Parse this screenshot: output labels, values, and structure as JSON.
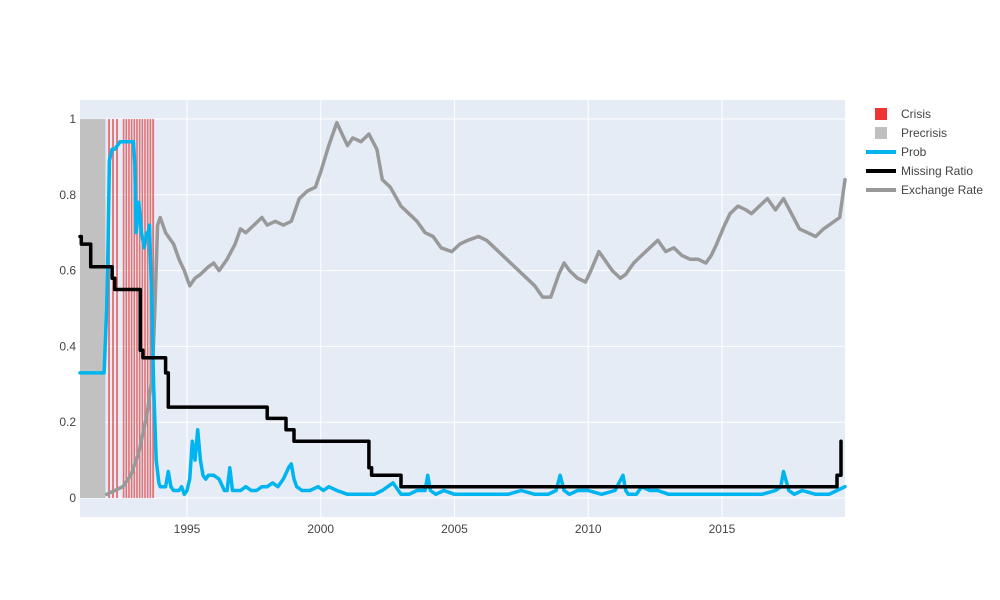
{
  "chart_data": {
    "type": "line",
    "title": "",
    "xlabel": "",
    "ylabel": "",
    "xlim": [
      1991.0,
      2019.6
    ],
    "ylim": [
      -0.05,
      1.05
    ],
    "x_ticks": [
      1995,
      2000,
      2005,
      2010,
      2015
    ],
    "y_ticks": [
      0,
      0.2,
      0.4,
      0.6,
      0.8,
      1
    ],
    "x_tick_labels": [
      "1995",
      "2000",
      "2005",
      "2010",
      "2015"
    ],
    "y_tick_labels": [
      "0",
      "0.2",
      "0.4",
      "0.6",
      "0.8",
      "1"
    ],
    "grid": true,
    "legend_position": "top-right",
    "legend": [
      {
        "name": "Crisis",
        "kind": "box",
        "color": "#f03434"
      },
      {
        "name": "Precrisis",
        "kind": "box",
        "color": "#bfbfbf"
      },
      {
        "name": "Prob",
        "kind": "line",
        "color": "#00b4f0"
      },
      {
        "name": "Missing Ratio",
        "kind": "line",
        "color": "#000000"
      },
      {
        "name": "Exchange Rate",
        "kind": "line",
        "color": "#999999"
      }
    ],
    "precrisis_periods": [
      [
        1991.0,
        1991.95
      ]
    ],
    "crisis_periods": [
      [
        1992.05,
        1992.12
      ],
      [
        1992.2,
        1992.27
      ],
      [
        1992.35,
        1992.42
      ],
      [
        1992.6,
        1992.66
      ],
      [
        1992.7,
        1992.76
      ],
      [
        1992.8,
        1992.86
      ],
      [
        1992.9,
        1992.96
      ],
      [
        1993.0,
        1993.06
      ],
      [
        1993.1,
        1993.16
      ],
      [
        1993.2,
        1993.26
      ],
      [
        1993.3,
        1993.36
      ],
      [
        1993.4,
        1993.46
      ],
      [
        1993.5,
        1993.56
      ],
      [
        1993.6,
        1993.66
      ],
      [
        1993.7,
        1993.77
      ]
    ],
    "series": [
      {
        "name": "Prob",
        "color": "#00b4f0",
        "x": [
          1991.0,
          1991.6,
          1991.9,
          1992.0,
          1992.05,
          1992.1,
          1992.2,
          1992.3,
          1992.4,
          1992.5,
          1992.55,
          1992.7,
          1992.8,
          1992.9,
          1993.0,
          1993.05,
          1993.1,
          1993.2,
          1993.3,
          1993.35,
          1993.4,
          1993.5,
          1993.55,
          1993.6,
          1993.7,
          1993.75,
          1993.85,
          1993.95,
          1994.0,
          1994.1,
          1994.2,
          1994.3,
          1994.4,
          1994.5,
          1994.6,
          1994.7,
          1994.8,
          1994.9,
          1995.0,
          1995.1,
          1995.2,
          1995.3,
          1995.4,
          1995.5,
          1995.6,
          1995.7,
          1995.8,
          1996.0,
          1996.2,
          1996.4,
          1996.5,
          1996.6,
          1996.7,
          1996.8,
          1997.0,
          1997.2,
          1997.4,
          1997.6,
          1997.8,
          1998.0,
          1998.2,
          1998.4,
          1998.6,
          1998.8,
          1998.9,
          1999.0,
          1999.1,
          1999.3,
          1999.6,
          1999.9,
          2000.1,
          2000.3,
          2000.6,
          2001.0,
          2001.5,
          2002.0,
          2002.3,
          2002.5,
          2002.7,
          2003.0,
          2003.3,
          2003.6,
          2003.9,
          2004.0,
          2004.1,
          2004.3,
          2004.6,
          2005.0,
          2005.5,
          2006.0,
          2006.5,
          2007.0,
          2007.5,
          2008.0,
          2008.5,
          2008.8,
          2008.95,
          2009.1,
          2009.3,
          2009.6,
          2010.0,
          2010.5,
          2011.0,
          2011.3,
          2011.4,
          2011.5,
          2011.8,
          2012.0,
          2012.3,
          2012.6,
          2013.0,
          2013.5,
          2014.0,
          2014.5,
          2015.0,
          2015.5,
          2016.0,
          2016.5,
          2017.0,
          2017.2,
          2017.3,
          2017.5,
          2017.7,
          2018.0,
          2018.5,
          2019.0,
          2019.3,
          2019.6
        ],
        "y": [
          0.33,
          0.33,
          0.33,
          0.5,
          0.68,
          0.89,
          0.92,
          0.92,
          0.93,
          0.94,
          0.94,
          0.94,
          0.94,
          0.94,
          0.94,
          0.88,
          0.7,
          0.78,
          0.7,
          0.68,
          0.66,
          0.7,
          0.7,
          0.72,
          0.48,
          0.3,
          0.1,
          0.04,
          0.03,
          0.03,
          0.03,
          0.07,
          0.03,
          0.02,
          0.02,
          0.02,
          0.03,
          0.01,
          0.02,
          0.05,
          0.15,
          0.1,
          0.18,
          0.1,
          0.06,
          0.05,
          0.06,
          0.06,
          0.05,
          0.02,
          0.02,
          0.08,
          0.02,
          0.02,
          0.02,
          0.03,
          0.02,
          0.02,
          0.03,
          0.03,
          0.04,
          0.03,
          0.05,
          0.08,
          0.09,
          0.05,
          0.03,
          0.02,
          0.02,
          0.03,
          0.02,
          0.03,
          0.02,
          0.01,
          0.01,
          0.01,
          0.02,
          0.03,
          0.04,
          0.01,
          0.01,
          0.02,
          0.02,
          0.06,
          0.02,
          0.01,
          0.02,
          0.01,
          0.01,
          0.01,
          0.01,
          0.01,
          0.02,
          0.01,
          0.01,
          0.02,
          0.06,
          0.02,
          0.01,
          0.02,
          0.02,
          0.01,
          0.02,
          0.06,
          0.02,
          0.01,
          0.01,
          0.03,
          0.02,
          0.02,
          0.01,
          0.01,
          0.01,
          0.01,
          0.01,
          0.01,
          0.01,
          0.01,
          0.02,
          0.03,
          0.07,
          0.02,
          0.01,
          0.02,
          0.01,
          0.01,
          0.02,
          0.03
        ]
      },
      {
        "name": "Missing Ratio",
        "color": "#000000",
        "x": [
          1991.0,
          1991.05,
          1991.05,
          1991.4,
          1991.4,
          1992.2,
          1992.2,
          1992.3,
          1992.3,
          1992.4,
          1992.4,
          1993.25,
          1993.25,
          1993.35,
          1993.35,
          1994.2,
          1994.2,
          1994.3,
          1994.3,
          1998.0,
          1998.0,
          1998.7,
          1998.7,
          1999.0,
          1999.0,
          2001.8,
          2001.8,
          2001.9,
          2001.9,
          2003.0,
          2003.0,
          2019.3,
          2019.3,
          2019.45,
          2019.45
        ],
        "y": [
          0.69,
          0.69,
          0.67,
          0.67,
          0.61,
          0.61,
          0.58,
          0.58,
          0.55,
          0.55,
          0.55,
          0.55,
          0.39,
          0.39,
          0.37,
          0.37,
          0.33,
          0.33,
          0.24,
          0.24,
          0.21,
          0.21,
          0.18,
          0.18,
          0.15,
          0.15,
          0.08,
          0.08,
          0.06,
          0.06,
          0.03,
          0.03,
          0.06,
          0.06,
          0.15
        ]
      },
      {
        "name": "Exchange Rate",
        "color": "#999999",
        "x": [
          1992.0,
          1992.3,
          1992.6,
          1992.9,
          1993.2,
          1993.5,
          1993.7,
          1993.8,
          1993.9,
          1994.0,
          1994.2,
          1994.5,
          1994.7,
          1994.9,
          1995.1,
          1995.3,
          1995.5,
          1995.8,
          1996.0,
          1996.2,
          1996.5,
          1996.8,
          1997.0,
          1997.2,
          1997.5,
          1997.8,
          1998.0,
          1998.3,
          1998.6,
          1998.9,
          1999.2,
          1999.5,
          1999.8,
          2000.0,
          2000.3,
          2000.6,
          2000.8,
          2001.0,
          2001.2,
          2001.5,
          2001.8,
          2002.1,
          2002.3,
          2002.6,
          2003.0,
          2003.3,
          2003.6,
          2003.9,
          2004.2,
          2004.5,
          2004.9,
          2005.2,
          2005.5,
          2005.9,
          2006.2,
          2006.5,
          2006.8,
          2007.1,
          2007.4,
          2007.7,
          2008.0,
          2008.3,
          2008.6,
          2008.9,
          2009.1,
          2009.3,
          2009.6,
          2009.9,
          2010.1,
          2010.4,
          2010.6,
          2010.9,
          2011.2,
          2011.4,
          2011.7,
          2012.0,
          2012.3,
          2012.6,
          2012.9,
          2013.2,
          2013.5,
          2013.8,
          2014.1,
          2014.4,
          2014.6,
          2014.8,
          2015.1,
          2015.3,
          2015.6,
          2015.9,
          2016.1,
          2016.4,
          2016.7,
          2017.0,
          2017.3,
          2017.6,
          2017.9,
          2018.2,
          2018.5,
          2018.8,
          2019.0,
          2019.2,
          2019.4,
          2019.6
        ],
        "y": [
          0.01,
          0.02,
          0.03,
          0.06,
          0.12,
          0.22,
          0.32,
          0.5,
          0.72,
          0.74,
          0.7,
          0.67,
          0.63,
          0.6,
          0.56,
          0.58,
          0.59,
          0.61,
          0.62,
          0.6,
          0.63,
          0.67,
          0.71,
          0.7,
          0.72,
          0.74,
          0.72,
          0.73,
          0.72,
          0.73,
          0.79,
          0.81,
          0.82,
          0.86,
          0.93,
          0.99,
          0.96,
          0.93,
          0.95,
          0.94,
          0.96,
          0.92,
          0.84,
          0.82,
          0.77,
          0.75,
          0.73,
          0.7,
          0.69,
          0.66,
          0.65,
          0.67,
          0.68,
          0.69,
          0.68,
          0.66,
          0.64,
          0.62,
          0.6,
          0.58,
          0.56,
          0.53,
          0.53,
          0.59,
          0.62,
          0.6,
          0.58,
          0.57,
          0.6,
          0.65,
          0.63,
          0.6,
          0.58,
          0.59,
          0.62,
          0.64,
          0.66,
          0.68,
          0.65,
          0.66,
          0.64,
          0.63,
          0.63,
          0.62,
          0.64,
          0.67,
          0.72,
          0.75,
          0.77,
          0.76,
          0.75,
          0.77,
          0.79,
          0.76,
          0.79,
          0.75,
          0.71,
          0.7,
          0.69,
          0.71,
          0.72,
          0.73,
          0.74,
          0.84
        ]
      }
    ]
  }
}
